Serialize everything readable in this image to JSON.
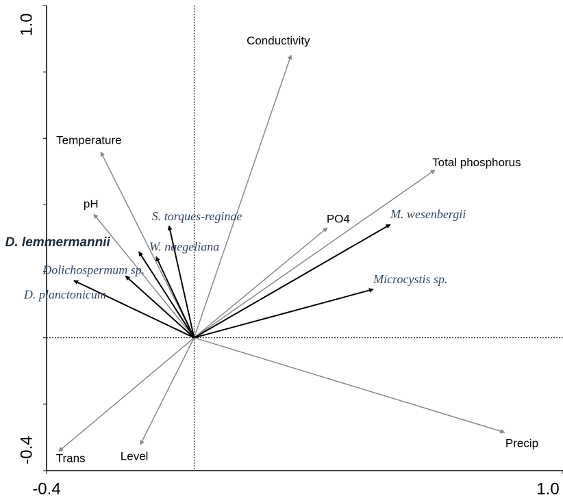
{
  "chart_data": {
    "type": "biplot",
    "xlim": [
      -0.4,
      1.0
    ],
    "ylim": [
      -0.4,
      1.0
    ],
    "xticks": [
      {
        "value": -0.4,
        "label": "-0.4"
      },
      {
        "value": 1.0,
        "label": "1.0"
      }
    ],
    "yticks": [
      {
        "value": -0.4,
        "label": "-0.4"
      },
      {
        "value": 1.0,
        "label": "1.0"
      }
    ],
    "y_minor_ticks": [
      -0.2,
      0,
      0.2,
      0.4,
      0.6,
      0.8
    ],
    "environmental_color": "#888888",
    "species_color": "#000000",
    "environmental_vectors": [
      {
        "label": "Conductivity",
        "x": 0.263,
        "y": 0.851
      },
      {
        "label": "Temperature",
        "x": -0.253,
        "y": 0.559
      },
      {
        "label": "Total phosphorus",
        "x": 0.653,
        "y": 0.505
      },
      {
        "label": "pH",
        "x": -0.272,
        "y": 0.372
      },
      {
        "label": "PO4",
        "x": 0.361,
        "y": 0.331
      },
      {
        "label": "Precip",
        "x": 0.842,
        "y": -0.285
      },
      {
        "label": "Trans",
        "x": -0.367,
        "y": -0.342
      },
      {
        "label": "Level",
        "x": -0.146,
        "y": -0.322
      }
    ],
    "species_vectors": [
      {
        "label": "M. wesenbergii",
        "x": 0.532,
        "y": 0.341
      },
      {
        "label": "Microcystis sp.",
        "x": 0.486,
        "y": 0.146
      },
      {
        "label": "S. torques-reginae",
        "x": -0.068,
        "y": 0.337
      },
      {
        "label": "D. lemmermannii",
        "x": -0.15,
        "y": 0.259
      },
      {
        "label": "W. naegeliana",
        "x": -0.103,
        "y": 0.244
      },
      {
        "label": "Dolichospermum sp.",
        "x": -0.186,
        "y": 0.186
      },
      {
        "label": "D. planctonicum",
        "x": -0.326,
        "y": 0.172
      }
    ]
  }
}
